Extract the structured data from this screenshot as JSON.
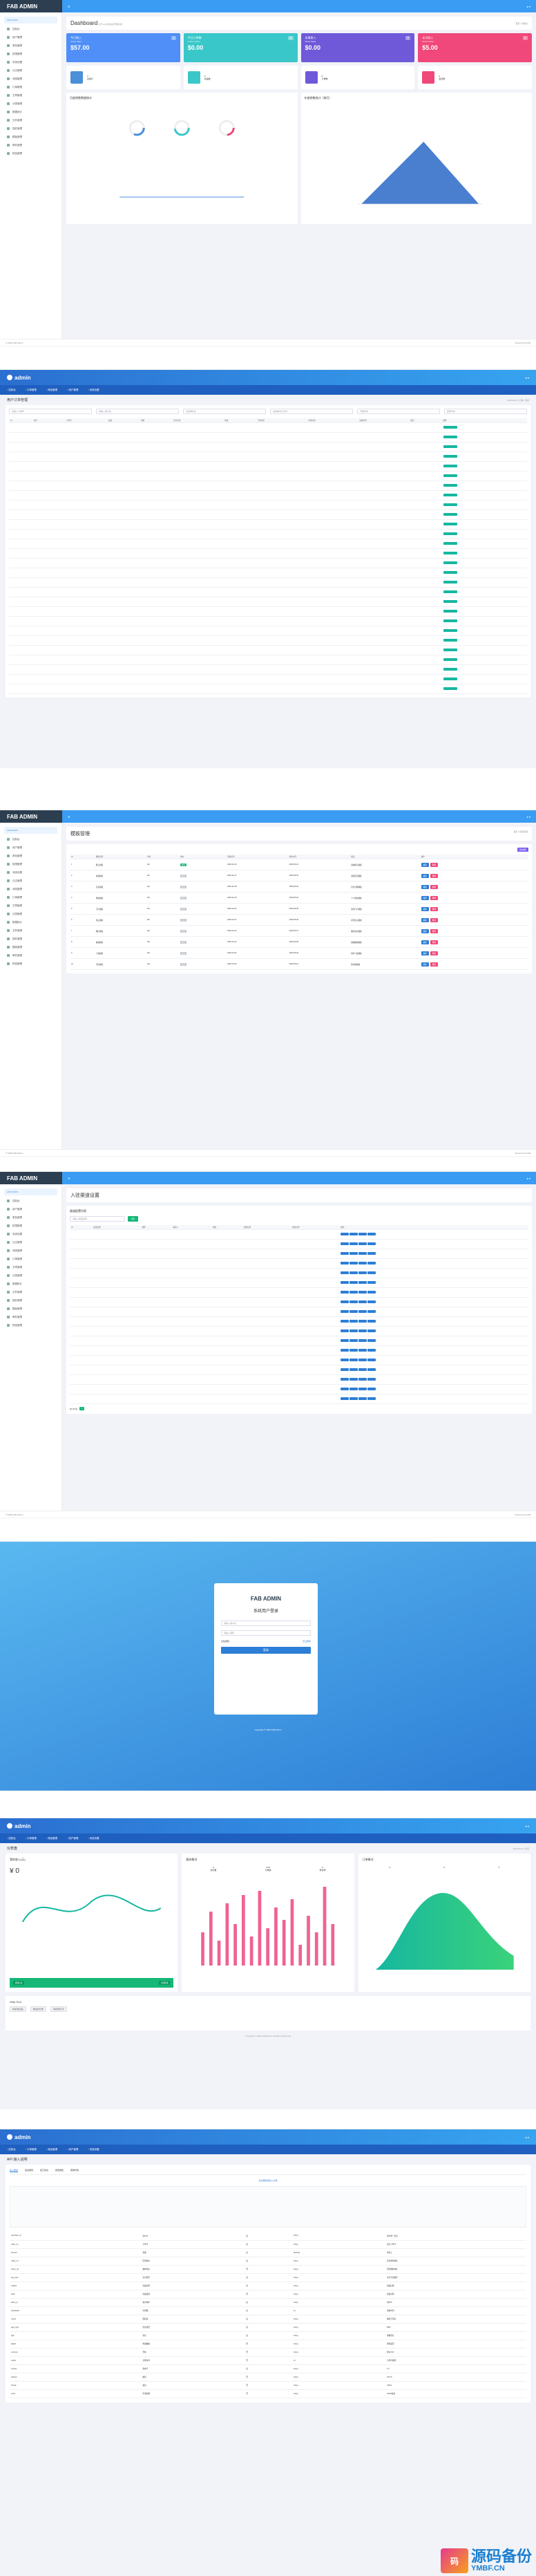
{
  "s1": {
    "logo": "FAB ADMIN",
    "page_title": "Dashboard",
    "page_sub": "基于LayUI的后台管理系统",
    "breadcrumb": "首页 / 控制台",
    "sidebar": [
      "控制台",
      "用户管理",
      "角色管理",
      "权限管理",
      "系统设置",
      "日志管理",
      "消息管理",
      "订单管理",
      "文章管理",
      "分类管理",
      "数据统计",
      "文件管理",
      "插件管理",
      "模板管理",
      "邮件管理",
      "短信管理"
    ],
    "stats": [
      {
        "title": "今日收入",
        "sub": "Today Sales",
        "value": "$57.00",
        "tag": "日",
        "color": "#4f8ff7"
      },
      {
        "title": "今日订单数",
        "sub": "Today Orders",
        "value": "$0.00",
        "tag": "周",
        "color": "#3ac7c9"
      },
      {
        "title": "本周收入",
        "sub": "Week Sales",
        "value": "$0.00",
        "tag": "月",
        "color": "#6f59d9"
      },
      {
        "title": "本月收入",
        "sub": "Month Sales",
        "value": "$5.00",
        "tag": "年",
        "color": "#f0487a"
      }
    ],
    "mini": [
      {
        "label": "总用户",
        "val": "0",
        "color": "#4a8fd8"
      },
      {
        "label": "商品数",
        "val": "0",
        "color": "#3ac7c9"
      },
      {
        "label": "订单数",
        "val": "0",
        "color": "#6f59d9"
      },
      {
        "label": "会员数",
        "val": "0",
        "color": "#f0487a"
      }
    ],
    "chart1_title": "月度销售数据统计",
    "chart2_title": "年度销售统计（按月）",
    "footer_left": "© 2020 FAB Admin",
    "footer_right": "Powered by FAB"
  },
  "s2": {
    "title": "用户订单管理",
    "breadcrumb": "Dashboard / 订单 / 列表",
    "nav": [
      "控制台",
      "订单管理",
      "商品管理",
      "用户管理",
      "系统设置"
    ],
    "filters": [
      "请输入订单号",
      "请输入用户名",
      "请选择状态",
      "请选择支付方式",
      "开始时间",
      "结束时间"
    ],
    "columns": [
      "ID",
      "用户",
      "订单号",
      "商品",
      "金额",
      "支付方式",
      "状态",
      "下单时间",
      "付款时间",
      "完成时间",
      "备注",
      "操作"
    ],
    "rows_count": 28
  },
  "s3": {
    "title": "模板管理",
    "breadcrumb": "首页 / 模板管理",
    "columns": [
      "ID",
      "模板名称",
      "作者",
      "状态",
      "创建时间",
      "更新时间",
      "描述",
      "操作"
    ],
    "rows": [
      [
        "1",
        "默认模板",
        "fab",
        "启用",
        "2020-04-16",
        "2020-05-01",
        "系统默认模板"
      ],
      [
        "2",
        "商城模板",
        "fab",
        "禁用",
        "2020-04-17",
        "2020-05-02",
        "商城首页模板"
      ],
      [
        "3",
        "企业模板",
        "fab",
        "禁用",
        "2020-04-18",
        "2020-05-03",
        "企业官网模板"
      ],
      [
        "4",
        "博客模板",
        "fab",
        "禁用",
        "2020-04-19",
        "2020-05-04",
        "个人博客模板"
      ],
      [
        "5",
        "门户模板",
        "fab",
        "禁用",
        "2020-04-20",
        "2020-05-05",
        "资讯门户模板"
      ],
      [
        "6",
        "论坛模板",
        "fab",
        "禁用",
        "2020-04-21",
        "2020-05-06",
        "社区论坛模板"
      ],
      [
        "7",
        "图片模板",
        "fab",
        "禁用",
        "2020-04-22",
        "2020-05-07",
        "图片展示模板"
      ],
      [
        "8",
        "视频模板",
        "fab",
        "禁用",
        "2020-04-23",
        "2020-05-08",
        "视频播放模板"
      ],
      [
        "9",
        "下载模板",
        "fab",
        "禁用",
        "2020-04-24",
        "2020-05-09",
        "软件下载模板"
      ],
      [
        "10",
        "手机模板",
        "fab",
        "禁用",
        "2020-04-25",
        "2020-05-10",
        "移动端模板"
      ]
    ],
    "add_label": "添加模板"
  },
  "s4": {
    "title": "入驻渠道设置",
    "panel_title": "渠道配置列表",
    "search_placeholder": "请输入渠道名称",
    "search_btn": "搜索",
    "columns": [
      "ID",
      "渠道名称",
      "地区",
      "联系人",
      "状态",
      "创建时间",
      "更新时间",
      "操作"
    ],
    "rows_count": 18,
    "pager": "共 18 条"
  },
  "s5": {
    "brand": "FAB ADMIN",
    "title": "系统用户登录",
    "user_placeholder": "请输入用户名",
    "pass_placeholder": "请输入密码",
    "remember": "记住密码",
    "forgot": "忘记密码",
    "login_btn": "登录",
    "copyright": "Copyright © 2020 FAB Admin"
  },
  "s6": {
    "title": "仪表盘",
    "breadcrumb": "Dashboard / 主页",
    "card1": {
      "title": "我的收入(元)",
      "value": "¥ 0",
      "btn1": "提现记录",
      "btn2": "立即提现"
    },
    "card2": {
      "title": "服务概况",
      "nums": [
        "0",
        "0.00",
        "0"
      ],
      "labels": [
        "访问量",
        "订单额",
        "转化率"
      ]
    },
    "card3": {
      "title": "订单概况",
      "nums": [
        "0",
        "0",
        "0"
      ]
    },
    "bars": [
      40,
      65,
      30,
      75,
      50,
      85,
      35,
      90,
      45,
      70,
      55,
      80,
      25,
      60,
      40,
      95,
      50
    ],
    "quick_title": "Help Tool",
    "quick": [
      "快捷添加商品",
      "快捷发布文章",
      "快捷管理订单"
    ],
    "footer": "Copyright © 2020 FAB Admin All Rights Reserved"
  },
  "s7": {
    "title": "API 接入说明",
    "tabs": [
      "接入概述",
      "签名规则",
      "接口列表",
      "回调通知",
      "错误代码"
    ],
    "notice": "请仔细阅读接入文档",
    "fields": [
      [
        "merchant_id",
        "商户ID",
        "是",
        "string",
        "商户唯一标识"
      ],
      [
        "order_no",
        "订单号",
        "是",
        "string",
        "商户订单号"
      ],
      [
        "amount",
        "金额",
        "是",
        "decimal",
        "单位元"
      ],
      [
        "notify_url",
        "回调地址",
        "是",
        "string",
        "异步通知地址"
      ],
      [
        "return_url",
        "跳转地址",
        "否",
        "string",
        "同步跳转地址"
      ],
      [
        "pay_type",
        "支付类型",
        "是",
        "string",
        "支付方式编码"
      ],
      [
        "subject",
        "商品名称",
        "是",
        "string",
        "商品标题"
      ],
      [
        "body",
        "商品描述",
        "否",
        "string",
        "商品详情"
      ],
      [
        "client_ip",
        "客户端IP",
        "是",
        "string",
        "用户IP"
      ],
      [
        "timestamp",
        "时间戳",
        "是",
        "int",
        "请求时间"
      ],
      [
        "nonce",
        "随机串",
        "是",
        "string",
        "随机字符串"
      ],
      [
        "sign_type",
        "签名类型",
        "是",
        "string",
        "MD5"
      ],
      [
        "sign",
        "签名",
        "是",
        "string",
        "参数签名"
      ],
      [
        "attach",
        "附加数据",
        "否",
        "string",
        "原样返回"
      ],
      [
        "currency",
        "币种",
        "否",
        "string",
        "默认CNY"
      ],
      [
        "expire",
        "过期时间",
        "否",
        "int",
        "订单有效期"
      ],
      [
        "version",
        "版本号",
        "是",
        "string",
        "1.0"
      ],
      [
        "charset",
        "编码",
        "否",
        "string",
        "UTF-8"
      ],
      [
        "format",
        "格式",
        "否",
        "string",
        "JSON"
      ],
      [
        "extra",
        "扩展参数",
        "否",
        "string",
        "JSON格式"
      ]
    ]
  },
  "watermark": {
    "badge": "码",
    "name": "源码备份",
    "url": "YMBF.CN"
  }
}
